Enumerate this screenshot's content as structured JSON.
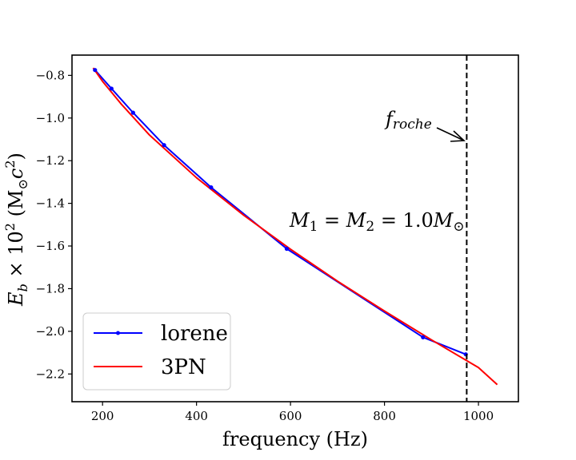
{
  "chart_data": {
    "type": "line",
    "xlabel": "frequency (Hz)",
    "ylabel_parts": {
      "symbol": "E",
      "symbol_sub": "b",
      "times": " × 10",
      "exp": "2",
      "unit_open": " (M",
      "unit_sub": "⊙",
      "unit_c": "c",
      "unit_exp": "2",
      "unit_close": ")"
    },
    "xlim": [
      135,
      1085
    ],
    "ylim": [
      -2.33,
      -0.705
    ],
    "xticks": [
      200,
      400,
      600,
      800,
      1000
    ],
    "xtick_labels": [
      "200",
      "400",
      "600",
      "800",
      "1000"
    ],
    "yticks": [
      -0.8,
      -1.0,
      -1.2,
      -1.4,
      -1.6,
      -1.8,
      -2.0,
      -2.2
    ],
    "ytick_labels": [
      "−0.8",
      "−1.0",
      "−1.2",
      "−1.4",
      "−1.6",
      "−1.8",
      "−2.0",
      "−2.2"
    ],
    "grid": false,
    "legend_position": "lower-left",
    "series": [
      {
        "name": "lorene",
        "color": "#0000ff",
        "marker": "dot",
        "x": [
          184,
          219,
          265,
          331,
          431,
          592,
          882,
          973
        ],
        "y": [
          -0.775,
          -0.862,
          -0.975,
          -1.127,
          -1.325,
          -1.613,
          -2.028,
          -2.108
        ]
      },
      {
        "name": "3PN",
        "color": "#ff0000",
        "marker": "none",
        "x": [
          180,
          200,
          240,
          300,
          400,
          500,
          600,
          700,
          800,
          900,
          1000,
          1040
        ],
        "y": [
          -0.765,
          -0.828,
          -0.935,
          -1.08,
          -1.28,
          -1.455,
          -1.615,
          -1.765,
          -1.905,
          -2.04,
          -2.17,
          -2.25
        ]
      }
    ],
    "vline": {
      "x": 975,
      "style": "dashed",
      "color": "#000000"
    },
    "annotations": {
      "froche": {
        "main": "f",
        "sub": "roche"
      },
      "masses": {
        "m1": "M",
        "m1_sub": "1",
        "eq1": " = ",
        "m2": "M",
        "m2_sub": "2",
        "eq2": " = 1.0",
        "msun": "M",
        "msun_sub": "⊙"
      }
    }
  }
}
